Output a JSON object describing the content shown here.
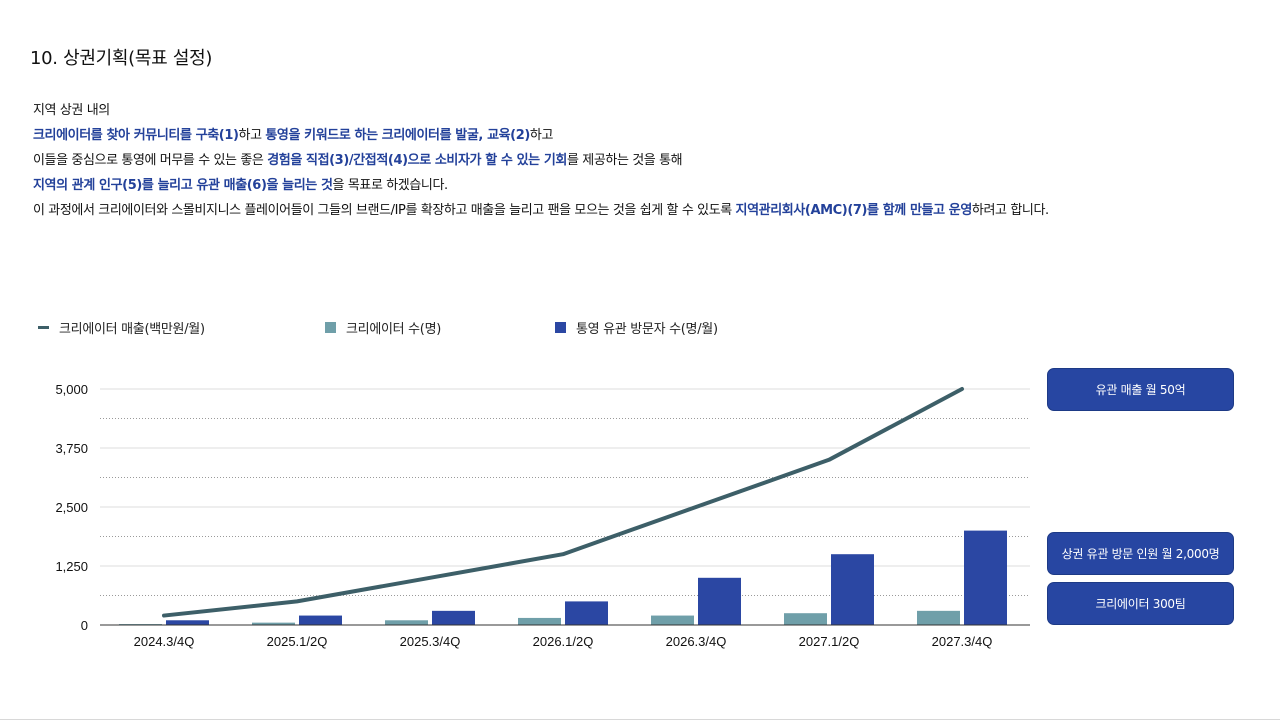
{
  "title": "10. 상권기획(목표 설정)",
  "paragraph": [
    [
      {
        "t": "지역 상권 내의",
        "h": false
      }
    ],
    [
      {
        "t": "크리에이터를 찾아 커뮤니티를 구축(1)",
        "h": true
      },
      {
        "t": "하고 ",
        "h": false
      },
      {
        "t": "통영을 키워드로 하는 크리에이터를 발굴, 교육(2)",
        "h": true
      },
      {
        "t": "하고",
        "h": false
      }
    ],
    [
      {
        "t": "이들을 중심으로 통영에 머무를 수 있는 좋은 ",
        "h": false
      },
      {
        "t": "경험을 직접(3)/간접적(4)으로 소비자가 할 수 있는 기회",
        "h": true
      },
      {
        "t": "를 제공하는 것을 통해",
        "h": false
      }
    ],
    [
      {
        "t": "지역의 관계 인구(5)를 늘리고 유관 매출(6)을  늘리는 것",
        "h": true
      },
      {
        "t": "을 목표로 하겠습니다.",
        "h": false
      }
    ],
    [
      {
        "t": "이 과정에서 크리에이터와 스몰비지니스 플레이어들이 그들의 브랜드/IP를 확장하고 매출을 늘리고 팬을 모으는 것을 쉽게 할 수 있도록 ",
        "h": false
      },
      {
        "t": "지역관리회사(AMC)(7)를 함께 만들고 운영",
        "h": true
      },
      {
        "t": "하려고 합니다.",
        "h": false
      }
    ]
  ],
  "callouts": {
    "sales": "유관 매출 월 50억",
    "visitors": "상권 유관 방문 인원 월 2,000명",
    "creators": "크리에이터 300팀"
  },
  "colors": {
    "line": "#3d5f68",
    "creators_bar": "#6f9fa9",
    "visitors_bar": "#2b47a3",
    "highlight_text": "#23419a"
  },
  "chart_data": {
    "type": "bar",
    "categories": [
      "2024.3/4Q",
      "2025.1/2Q",
      "2025.3/4Q",
      "2026.1/2Q",
      "2026.3/4Q",
      "2027.1/2Q",
      "2027.3/4Q"
    ],
    "yticks": [
      "0",
      "1,250",
      "2,500",
      "3,750",
      "5,000"
    ],
    "ylim": [
      0,
      5000
    ],
    "legend_position": "top",
    "grid": true,
    "series": [
      {
        "name": "크리에이터 매출(백만원/월)",
        "kind": "line",
        "values": [
          200,
          500,
          1000,
          1500,
          2500,
          3500,
          5000
        ]
      },
      {
        "name": "크리에이터 수(명)",
        "kind": "bar",
        "values": [
          20,
          50,
          100,
          150,
          200,
          250,
          300
        ]
      },
      {
        "name": "통영 유관 방문자 수(명/월)",
        "kind": "bar",
        "values": [
          100,
          200,
          300,
          500,
          1000,
          1500,
          2000
        ]
      }
    ]
  }
}
